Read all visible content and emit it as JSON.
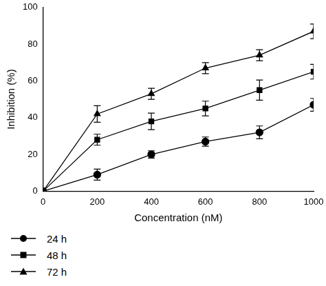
{
  "chart_data": {
    "type": "line",
    "x_label": "Concentration (nM)",
    "y_label": "Inhibition (%)",
    "x": [
      0,
      200,
      400,
      600,
      800,
      1000
    ],
    "series": [
      {
        "name": "24 h",
        "color": "#000000",
        "marker": "circle",
        "values": [
          0,
          9,
          20,
          27,
          32,
          47
        ],
        "errors": [
          0,
          3,
          2,
          2.5,
          3.5,
          3.5
        ]
      },
      {
        "name": "48 h",
        "color": "#000000",
        "marker": "square",
        "values": [
          0,
          28,
          38,
          45,
          55,
          65
        ],
        "errors": [
          0,
          3,
          4.5,
          4,
          5.5,
          4
        ]
      },
      {
        "name": "72 h",
        "color": "#000000",
        "marker": "triangle",
        "values": [
          0,
          42,
          53,
          67,
          74,
          87
        ],
        "errors": [
          0,
          4.5,
          3,
          3,
          3,
          4
        ]
      }
    ],
    "xlim": [
      0,
      1000
    ],
    "xticks": [
      0,
      200,
      400,
      600,
      800,
      1000
    ],
    "ylim": [
      0,
      100
    ],
    "yticks": [
      0,
      20,
      40,
      60,
      80,
      100
    ],
    "grid": false,
    "legend": "bottom"
  }
}
